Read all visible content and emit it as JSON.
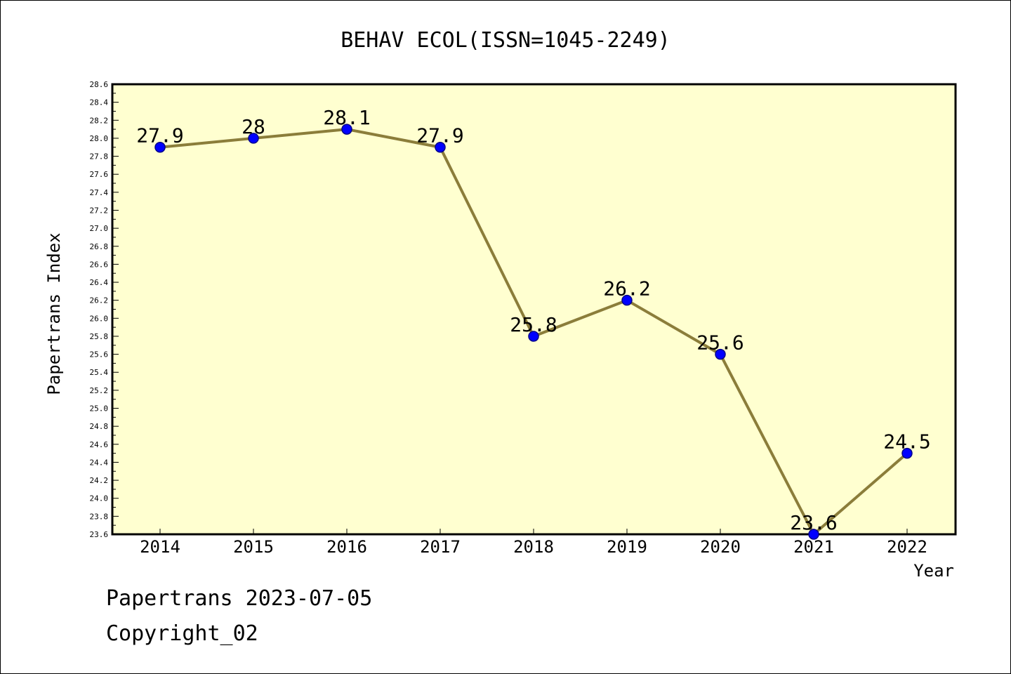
{
  "footer": {
    "line1": "Papertrans 2023-07-05",
    "line2": "Copyright_02"
  },
  "chart_data": {
    "type": "line",
    "title": "BEHAV ECOL(ISSN=1045-2249)",
    "xlabel": "Year",
    "ylabel": "Papertrans Index",
    "categories": [
      "2014",
      "2015",
      "2016",
      "2017",
      "2018",
      "2019",
      "2020",
      "2021",
      "2022"
    ],
    "values": [
      27.9,
      28.0,
      28.1,
      27.9,
      25.8,
      26.2,
      25.6,
      23.6,
      24.5
    ],
    "data_labels": [
      "27.9",
      "28",
      "28.1",
      "27.9",
      "25.8",
      "26.2",
      "25.6",
      "23.6",
      "24.5"
    ],
    "ylim": [
      23.6,
      28.6
    ],
    "y_major_step": 0.2,
    "y_minor_step": 0.1,
    "y_tick_labels": [
      "23.6",
      "23.8",
      "24.0",
      "24.2",
      "24.4",
      "24.6",
      "24.8",
      "25.0",
      "25.2",
      "25.4",
      "25.6",
      "25.8",
      "26.0",
      "26.2",
      "26.4",
      "26.6",
      "26.8",
      "27.0",
      "27.2",
      "27.4",
      "27.6",
      "27.8",
      "28.0",
      "28.2",
      "28.4",
      "28.6"
    ],
    "grid": false,
    "colors": {
      "plot_background": "#ffffd0",
      "line": "#8b7d3a",
      "marker": "#0000ff",
      "marker_edge": "#00008b",
      "frame": "#000000"
    }
  }
}
